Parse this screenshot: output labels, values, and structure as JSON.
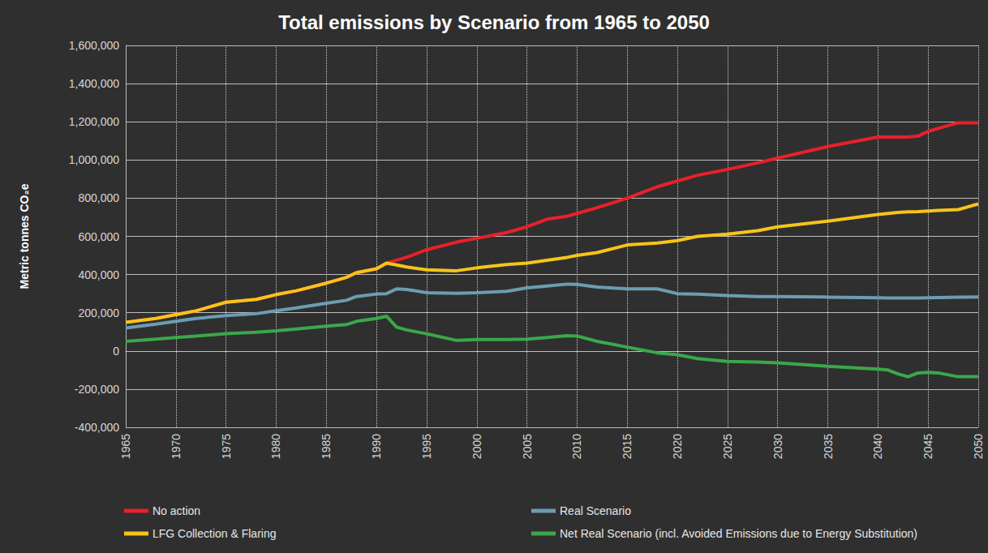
{
  "chart_data": {
    "type": "line",
    "title": "Total emissions by Scenario from 1965 to 2050",
    "y_label": "Metric tonnes CO₂e",
    "x": [
      1965,
      1968,
      1970,
      1972,
      1975,
      1978,
      1980,
      1982,
      1985,
      1987,
      1988,
      1990,
      1991,
      1992,
      1993,
      1995,
      1998,
      2000,
      2003,
      2005,
      2007,
      2009,
      2010,
      2012,
      2015,
      2018,
      2020,
      2022,
      2025,
      2028,
      2030,
      2035,
      2040,
      2041,
      2042,
      2043,
      2044,
      2045,
      2046,
      2048,
      2050
    ],
    "series": [
      {
        "name": "No action",
        "color": "#e8202a",
        "values": [
          150000,
          170000,
          190000,
          210000,
          255000,
          270000,
          295000,
          315000,
          355000,
          385000,
          410000,
          430000,
          460000,
          475000,
          490000,
          530000,
          570000,
          590000,
          620000,
          650000,
          690000,
          705000,
          720000,
          750000,
          800000,
          860000,
          890000,
          920000,
          950000,
          985000,
          1010000,
          1070000,
          1120000,
          1120000,
          1120000,
          1120000,
          1125000,
          1150000,
          1165000,
          1195000,
          1195000
        ]
      },
      {
        "name": "Real Scenario",
        "color": "#6b9db2",
        "values": [
          120000,
          140000,
          155000,
          170000,
          185000,
          195000,
          210000,
          225000,
          250000,
          265000,
          285000,
          298000,
          300000,
          325000,
          322000,
          305000,
          302000,
          305000,
          312000,
          330000,
          340000,
          350000,
          348000,
          335000,
          325000,
          325000,
          300000,
          297000,
          290000,
          285000,
          285000,
          282000,
          278000,
          277000,
          277000,
          277000,
          277000,
          278000,
          279000,
          281000,
          283000
        ]
      },
      {
        "name": "LFG Collection & Flaring",
        "color": "#f6c41a",
        "values": [
          150000,
          170000,
          190000,
          210000,
          255000,
          270000,
          295000,
          315000,
          355000,
          385000,
          410000,
          430000,
          460000,
          450000,
          440000,
          425000,
          420000,
          435000,
          452000,
          460000,
          475000,
          490000,
          500000,
          515000,
          555000,
          565000,
          578000,
          600000,
          612000,
          630000,
          650000,
          680000,
          715000,
          720000,
          725000,
          728000,
          730000,
          733000,
          736000,
          740000,
          770000
        ]
      },
      {
        "name": "Net Real Scenario (incl. Avoided Emissions due to Energy Substitution)",
        "color": "#3aa84a",
        "values": [
          50000,
          62000,
          70000,
          78000,
          90000,
          98000,
          105000,
          115000,
          130000,
          138000,
          155000,
          170000,
          182000,
          125000,
          110000,
          90000,
          55000,
          60000,
          60000,
          62000,
          70000,
          80000,
          78000,
          50000,
          20000,
          -10000,
          -20000,
          -40000,
          -55000,
          -58000,
          -62000,
          -80000,
          -95000,
          -100000,
          -120000,
          -135000,
          -115000,
          -112000,
          -115000,
          -135000,
          -135000
        ]
      }
    ],
    "xlim": [
      1965,
      2050
    ],
    "xticks": [
      1965,
      1970,
      1975,
      1980,
      1985,
      1990,
      1995,
      2000,
      2005,
      2010,
      2015,
      2020,
      2025,
      2030,
      2035,
      2040,
      2045,
      2050
    ],
    "ylim": [
      -400000,
      1600000
    ],
    "yticks": [
      {
        "value": -400000,
        "label": "-400,000"
      },
      {
        "value": -200000,
        "label": "-200,000"
      },
      0,
      {
        "value": 200000,
        "label": "200,000"
      },
      {
        "value": 400000,
        "label": "400,000"
      },
      {
        "value": 600000,
        "label": "600,000"
      },
      {
        "value": 800000,
        "label": "800,000"
      },
      {
        "value": 1000000,
        "label": "1,000,000"
      },
      {
        "value": 1200000,
        "label": "1,200,000"
      },
      {
        "value": 1400000,
        "label": "1,400,000"
      },
      {
        "value": 1600000,
        "label": "1,600,000"
      }
    ],
    "grid": true,
    "legend": "bottom"
  }
}
